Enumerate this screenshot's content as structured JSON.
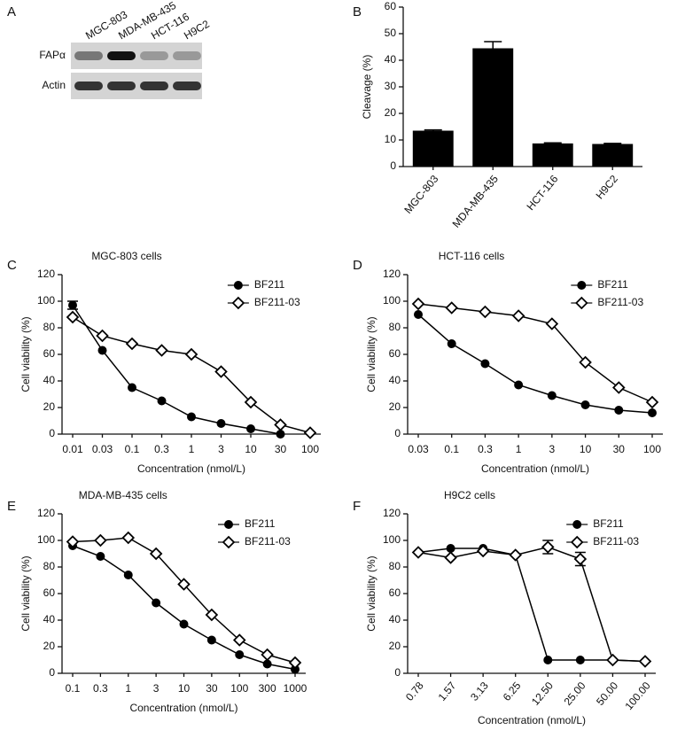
{
  "chart_data": [
    {
      "type": "blot",
      "panel": "A",
      "lanes": [
        "MGC-803",
        "MDA-MB-435",
        "HCT-116",
        "H9C2"
      ],
      "rows": [
        "FAPα",
        "Actin"
      ]
    },
    {
      "type": "bar",
      "panel": "B",
      "ylabel": "Cleavage (%)",
      "categories": [
        "MGC-803",
        "MDA-MB-435",
        "HCT-116",
        "H9C2"
      ],
      "values": [
        13.5,
        44.5,
        8.7,
        8.5
      ],
      "errors": [
        0.3,
        2.5,
        0.2,
        0.2
      ],
      "color": "#000000",
      "ylim": [
        0,
        60
      ],
      "yticks": [
        0,
        10,
        20,
        30,
        40,
        50,
        60
      ]
    },
    {
      "type": "line",
      "panel": "C",
      "title": "MGC-803 cells",
      "xlabel": "Concentration (nmol/L)",
      "ylabel": "Cell viability (%)",
      "categories": [
        "0.01",
        "0.03",
        "0.1",
        "0.3",
        "1",
        "3",
        "10",
        "30",
        "100"
      ],
      "ylim": [
        0,
        120
      ],
      "yticks": [
        0,
        20,
        40,
        60,
        80,
        100,
        120
      ],
      "legend": "upper right",
      "series": [
        {
          "name": "BF211",
          "color": "#000000",
          "marker": "circle",
          "values": [
            97,
            63,
            35,
            25,
            13,
            8,
            4,
            0,
            null
          ],
          "errors": [
            3,
            null,
            null,
            null,
            null,
            null,
            null,
            null,
            null
          ]
        },
        {
          "name": "BF211-03",
          "color": "#000000",
          "marker": "diamond",
          "values": [
            88,
            74,
            68,
            63,
            60,
            47,
            24,
            7,
            1
          ]
        }
      ]
    },
    {
      "type": "line",
      "panel": "D",
      "title": "HCT-116 cells",
      "xlabel": "Concentration (nmol/L)",
      "ylabel": "Cell viability (%)",
      "categories": [
        "0.03",
        "0.1",
        "0.3",
        "1",
        "3",
        "10",
        "30",
        "100"
      ],
      "ylim": [
        0,
        120
      ],
      "yticks": [
        0,
        20,
        40,
        60,
        80,
        100,
        120
      ],
      "legend": "upper right",
      "series": [
        {
          "name": "BF211",
          "color": "#000000",
          "marker": "circle",
          "values": [
            90,
            68,
            53,
            37,
            29,
            22,
            18,
            16
          ]
        },
        {
          "name": "BF211-03",
          "color": "#000000",
          "marker": "diamond",
          "values": [
            98,
            95,
            92,
            89,
            83,
            54,
            35,
            24
          ]
        }
      ]
    },
    {
      "type": "line",
      "panel": "E",
      "title": "MDA-MB-435 cells",
      "xlabel": "Concentration (nmol/L)",
      "ylabel": "Cell viability (%)",
      "categories": [
        "0.1",
        "0.3",
        "1",
        "3",
        "10",
        "30",
        "100",
        "300",
        "1000"
      ],
      "ylim": [
        0,
        120
      ],
      "yticks": [
        0,
        20,
        40,
        60,
        80,
        100,
        120
      ],
      "legend": "upper right",
      "series": [
        {
          "name": "BF211",
          "color": "#000000",
          "marker": "circle",
          "values": [
            96,
            88,
            74,
            53,
            37,
            25,
            14,
            7,
            3
          ]
        },
        {
          "name": "BF211-03",
          "color": "#000000",
          "marker": "diamond",
          "values": [
            99,
            100,
            102,
            90,
            67,
            44,
            25,
            14,
            8
          ]
        }
      ]
    },
    {
      "type": "line",
      "panel": "F",
      "title": "H9C2 cells",
      "xlabel": "Concentration (nmol/L)",
      "ylabel": "Cell viability (%)",
      "categories": [
        "0.78",
        "1.57",
        "3.13",
        "6.25",
        "12.50",
        "25.00",
        "50.00",
        "100.00"
      ],
      "ylim": [
        0,
        120
      ],
      "yticks": [
        0,
        20,
        40,
        60,
        80,
        100,
        120
      ],
      "legend": "upper right",
      "series": [
        {
          "name": "BF211",
          "color": "#000000",
          "marker": "circle",
          "values": [
            91,
            94,
            94,
            89,
            10,
            10,
            10,
            9
          ]
        },
        {
          "name": "BF211-03",
          "color": "#000000",
          "marker": "diamond",
          "values": [
            91,
            87,
            92,
            89,
            95,
            86,
            10,
            9
          ],
          "errors": [
            null,
            null,
            null,
            null,
            5,
            5,
            null,
            null
          ]
        }
      ]
    }
  ]
}
